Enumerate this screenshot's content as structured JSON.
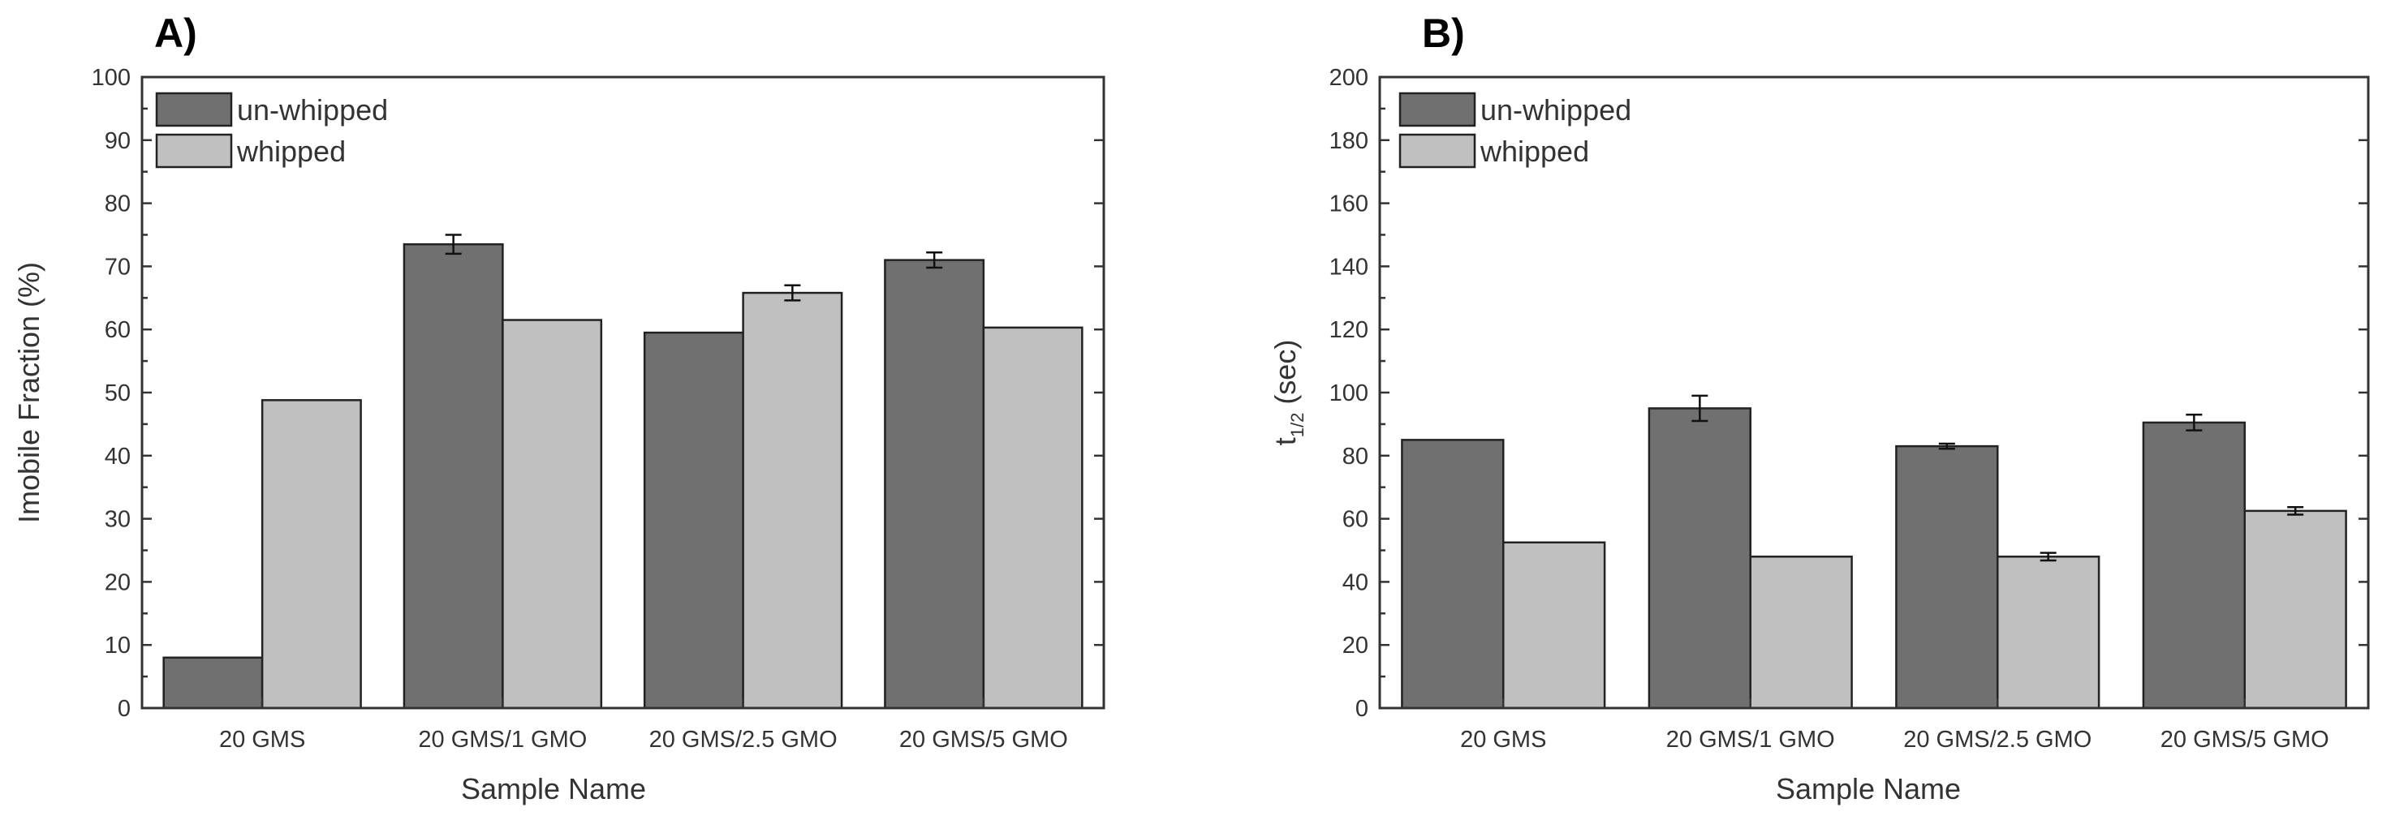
{
  "chart_data": [
    {
      "type": "bar",
      "panel": "A)",
      "title": "",
      "xlabel": "Sample Name",
      "ylabel": "Imobile Fraction (%)",
      "ylim": [
        0,
        100
      ],
      "yticks": [
        0,
        10,
        20,
        30,
        40,
        50,
        60,
        70,
        80,
        90,
        100
      ],
      "categories": [
        "20 GMS",
        "20 GMS/1 GMO",
        "20 GMS/2.5 GMO",
        "20 GMS/5 GMO"
      ],
      "legend_position": "top-left",
      "series": [
        {
          "name": "un-whipped",
          "color": "#707070",
          "values": [
            8,
            73.5,
            59.5,
            71
          ],
          "errors": [
            0,
            1.5,
            0,
            1.2
          ]
        },
        {
          "name": "whipped",
          "color": "#c0c0c0",
          "values": [
            48.8,
            61.5,
            65.8,
            60.3
          ],
          "errors": [
            0,
            0,
            1.2,
            0
          ]
        }
      ]
    },
    {
      "type": "bar",
      "panel": "B)",
      "title": "",
      "xlabel": "Sample Name",
      "ylabel": "t1/2 (sec)",
      "ylabel_main": "t",
      "ylabel_sub": "1/2",
      "ylabel_rest": " (sec)",
      "ylim": [
        0,
        200
      ],
      "yticks": [
        0,
        20,
        40,
        60,
        80,
        100,
        120,
        140,
        160,
        180,
        200
      ],
      "categories": [
        "20 GMS",
        "20 GMS/1 GMO",
        "20 GMS/2.5 GMO",
        "20 GMS/5 GMO"
      ],
      "legend_position": "top-left",
      "series": [
        {
          "name": "un-whipped",
          "color": "#707070",
          "values": [
            85,
            95,
            83,
            90.5
          ],
          "errors": [
            0,
            4,
            0.8,
            2.5
          ]
        },
        {
          "name": "whipped",
          "color": "#c0c0c0",
          "values": [
            52.5,
            48,
            48,
            62.5
          ],
          "errors": [
            0,
            0,
            1.2,
            1.2
          ]
        }
      ]
    }
  ]
}
